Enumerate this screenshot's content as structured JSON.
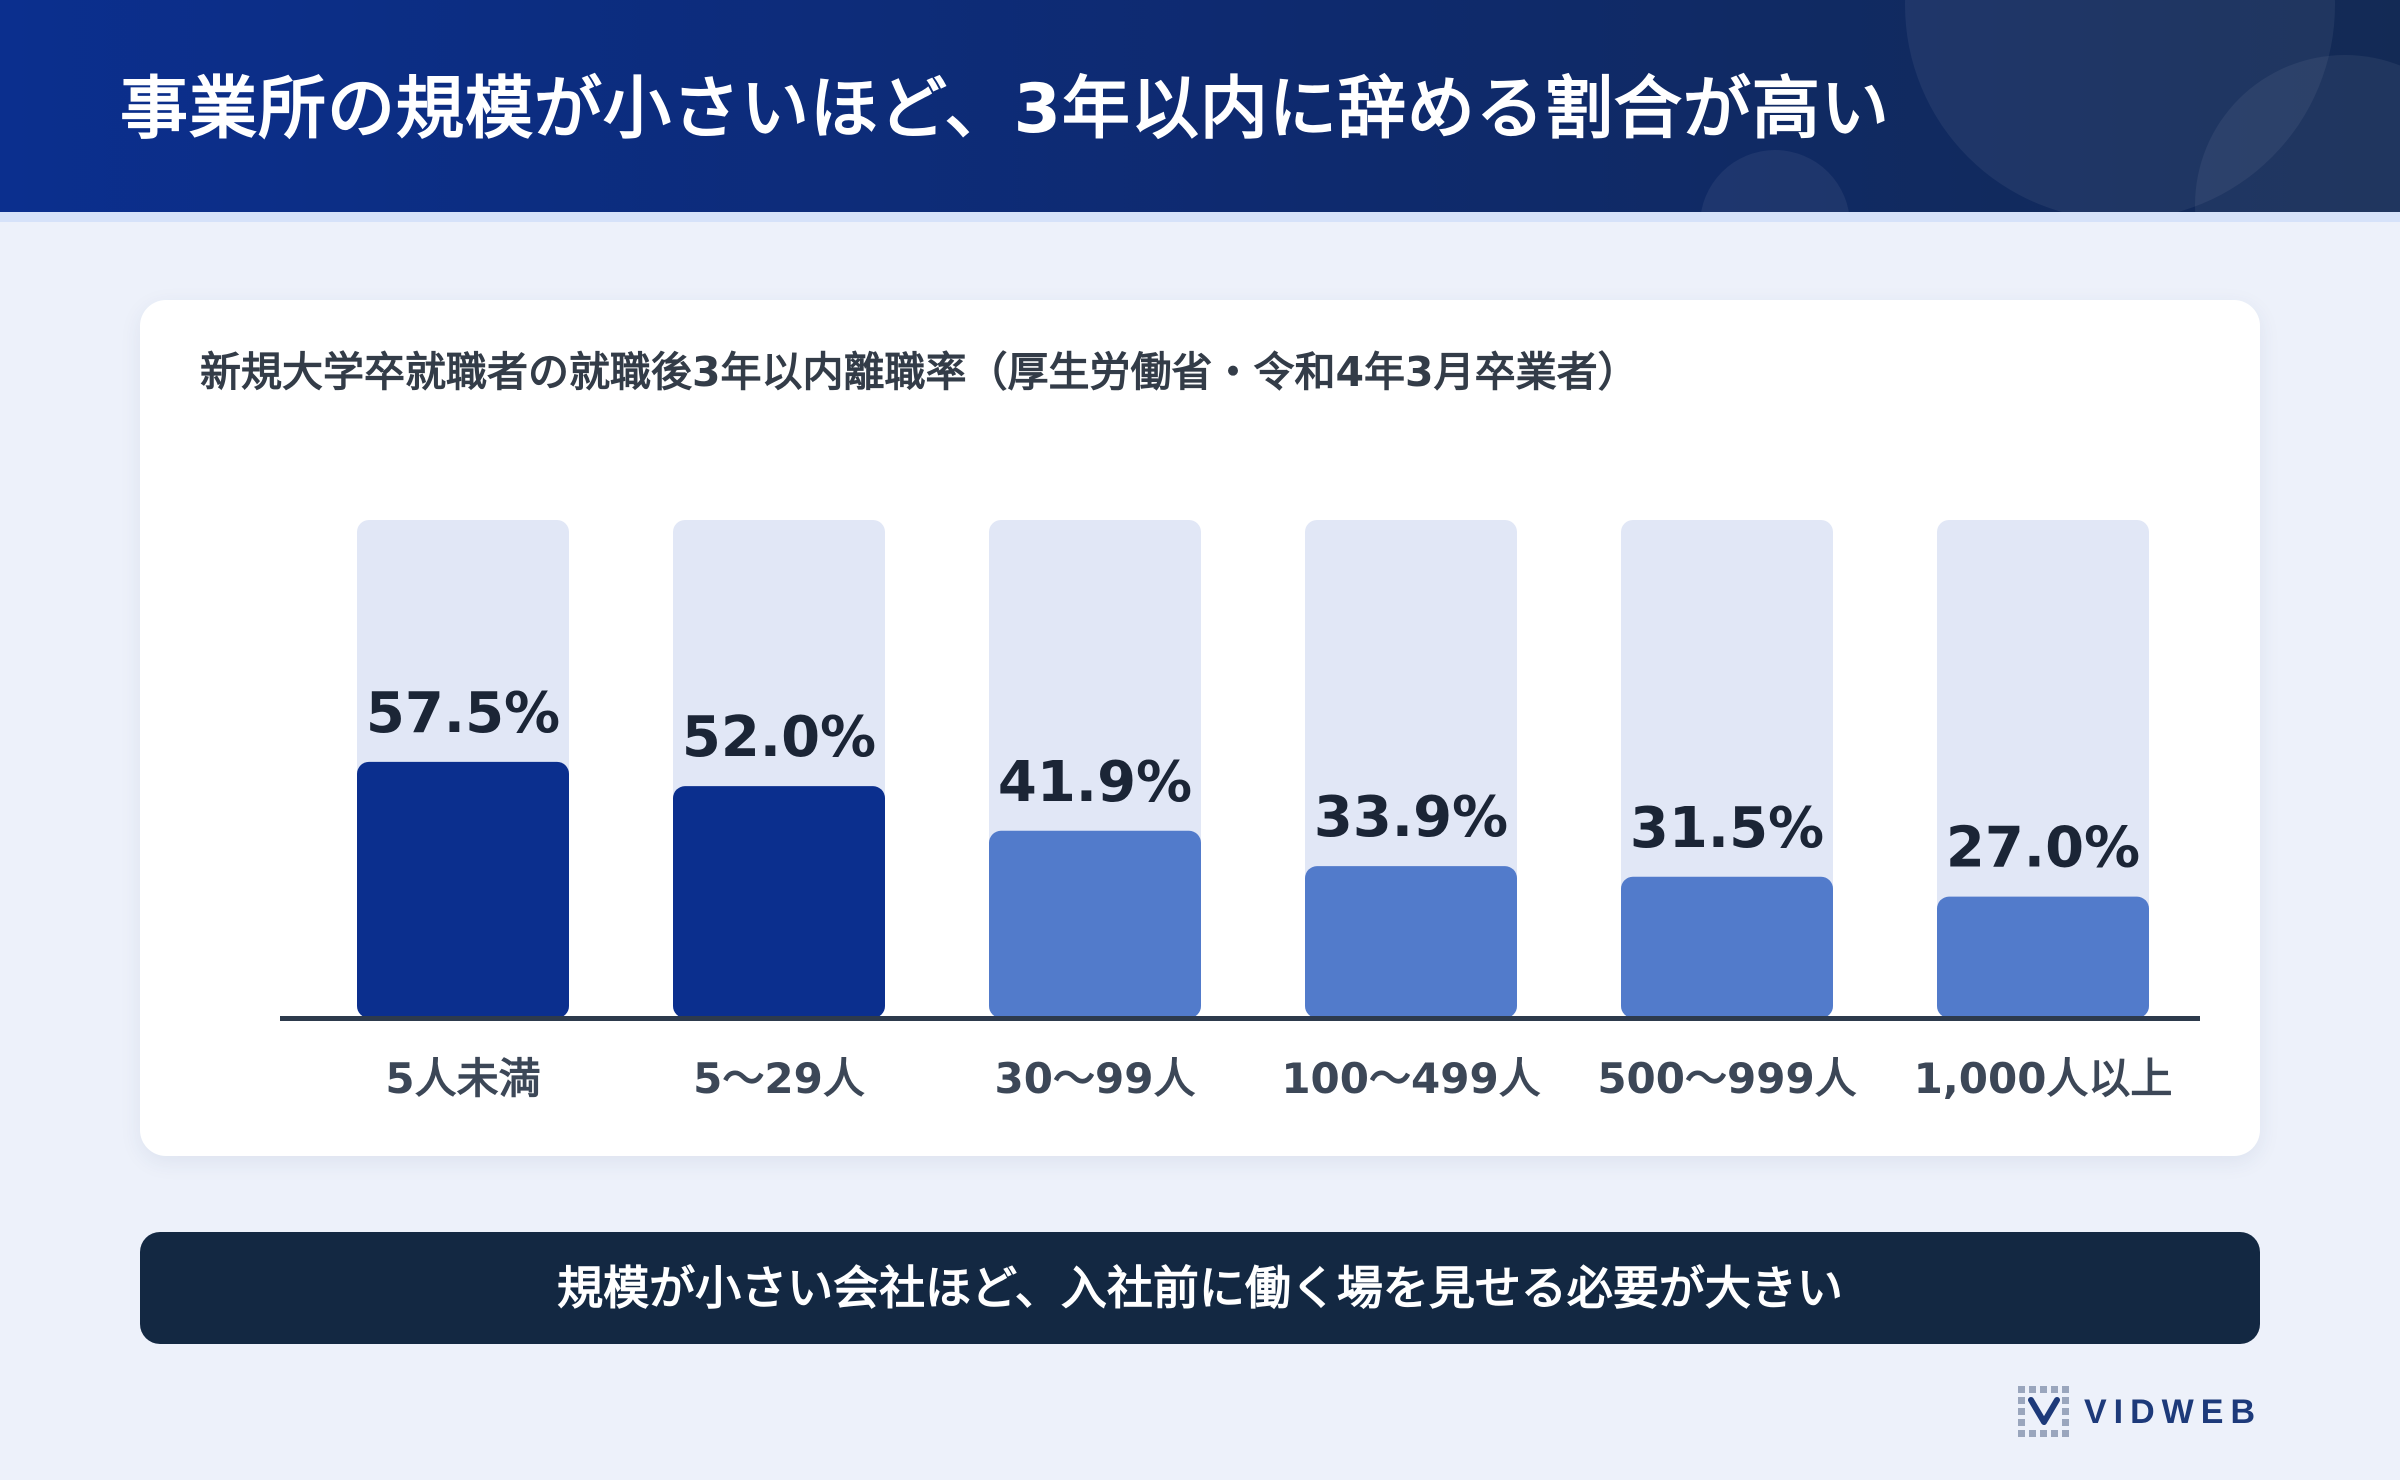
{
  "header": {
    "title": "事業所の規模が小さいほど、3年以内に辞める割合が高い"
  },
  "callout": {
    "text": "規模が小さい会社ほど、入社前に働く場を見せる必要が大きい"
  },
  "logo": {
    "text": "VIDWEB",
    "icon": "dot-grid-logo-icon"
  },
  "colors": {
    "header": "#0b2f8e",
    "bar_highlight": "#0b2f8e",
    "bar_normal": "#527bcb",
    "bar_track": "#e1e7f6",
    "callout_bg": "#132842"
  },
  "chart_data": {
    "type": "bar",
    "title": "新規大学卒就職者の就職後3年以内離職率（厚生労働省・令和4年3月卒業者）",
    "categories": [
      "5人未満",
      "5〜29人",
      "30〜99人",
      "100〜499人",
      "500〜999人",
      "1,000人以上"
    ],
    "values": [
      57.5,
      52.0,
      41.9,
      33.9,
      31.5,
      27.0
    ],
    "value_labels": [
      "57.5%",
      "52.0%",
      "41.9%",
      "33.9%",
      "31.5%",
      "27.0%"
    ],
    "highlighted": [
      true,
      true,
      false,
      false,
      false,
      false
    ],
    "unit": "%",
    "ylim": [
      0,
      60
    ],
    "grid": false,
    "legend": "none"
  }
}
